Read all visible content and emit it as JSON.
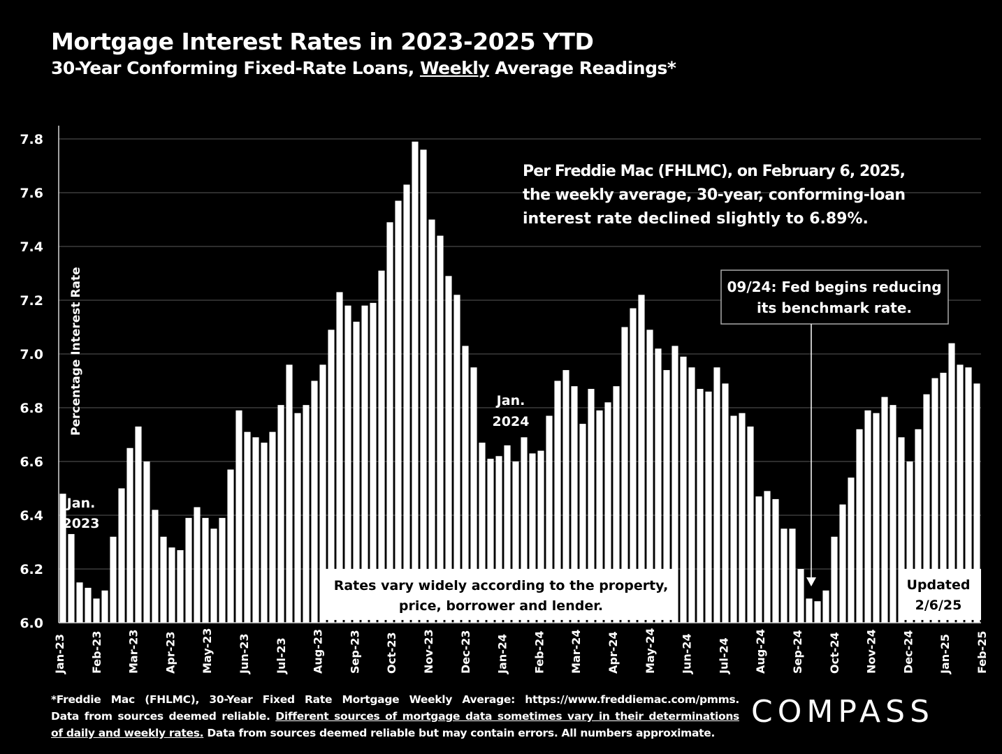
{
  "header": {
    "title": "Mortgage Interest Rates in 2023-2025 YTD",
    "subtitle_before": "30-Year Conforming Fixed-Rate Loans, ",
    "subtitle_underlined": "Weekly",
    "subtitle_after": " Average Readings*"
  },
  "chart_data": {
    "type": "bar",
    "ylabel": "Percentage Interest  Rate",
    "xlabel": "",
    "ylim": [
      6.0,
      7.8
    ],
    "yticks": [
      "6.0",
      "6.2",
      "6.4",
      "6.6",
      "6.8",
      "7.0",
      "7.2",
      "7.4",
      "7.6",
      "7.8"
    ],
    "grid": "horizontal",
    "x_tick_labels": [
      "Jan-23",
      "Feb-23",
      "Mar-23",
      "Apr-23",
      "May-23",
      "Jun-23",
      "Jul-23",
      "Aug-23",
      "Sep-23",
      "Oct-23",
      "Nov-23",
      "Dec-23",
      "Jan-24",
      "Feb-24",
      "Mar-24",
      "Apr-24",
      "May-24",
      "Jun-24",
      "Jul-24",
      "Aug-24",
      "Sep-24",
      "Oct-24",
      "Nov-24",
      "Dec-24",
      "Jan-25",
      "Feb-25"
    ],
    "values": [
      6.48,
      6.33,
      6.15,
      6.13,
      6.09,
      6.12,
      6.32,
      6.5,
      6.65,
      6.73,
      6.6,
      6.42,
      6.32,
      6.28,
      6.27,
      6.39,
      6.43,
      6.39,
      6.35,
      6.39,
      6.57,
      6.79,
      6.71,
      6.69,
      6.67,
      6.71,
      6.81,
      6.96,
      6.78,
      6.81,
      6.9,
      6.96,
      7.09,
      7.23,
      7.18,
      7.12,
      7.18,
      7.19,
      7.31,
      7.49,
      7.57,
      7.63,
      7.79,
      7.76,
      7.5,
      7.44,
      7.29,
      7.22,
      7.03,
      6.95,
      6.67,
      6.61,
      6.62,
      6.66,
      6.6,
      6.69,
      6.63,
      6.64,
      6.77,
      6.9,
      6.94,
      6.88,
      6.74,
      6.87,
      6.79,
      6.82,
      6.88,
      7.1,
      7.17,
      7.22,
      7.09,
      7.02,
      6.94,
      7.03,
      6.99,
      6.95,
      6.87,
      6.86,
      6.95,
      6.89,
      6.77,
      6.78,
      6.73,
      6.47,
      6.49,
      6.46,
      6.35,
      6.35,
      6.2,
      6.09,
      6.08,
      6.12,
      6.32,
      6.44,
      6.54,
      6.72,
      6.79,
      6.78,
      6.84,
      6.81,
      6.69,
      6.6,
      6.72,
      6.85,
      6.91,
      6.93,
      7.04,
      6.96,
      6.95,
      6.89
    ],
    "annotations": {
      "rate_note_lines": [
        "Per Freddie Mac (FHLMC), on February 6, 2025,",
        "the weekly average, 30-year, conforming-loan",
        "interest rate declined slightly to 6.89%."
      ],
      "jan2023": [
        "Jan.",
        "2023"
      ],
      "jan2024": [
        "Jan.",
        "2024"
      ],
      "fed_note": [
        "09/24: Fed begins reducing",
        "its benchmark rate."
      ],
      "vary_note": [
        "Rates vary widely according to the property,",
        "price, borrower and lender."
      ],
      "updated": [
        "Updated",
        "2/6/25"
      ]
    }
  },
  "footer": {
    "line1": "*Freddie Mac (FHLMC), 30-Year Fixed Rate Mortgage Weekly Average:  https://www.freddiemac.com/pmms.",
    "line2_plain": "Data from sources deemed reliable. ",
    "line2_underlined": "Different sources of mortgage data sometimes vary in their determinations",
    "line3_underlined": "of daily and weekly rates.",
    "line3_plain": " Data from sources deemed reliable but may contain errors. All numbers approximate."
  },
  "logo": {
    "text": "COMPASS"
  }
}
